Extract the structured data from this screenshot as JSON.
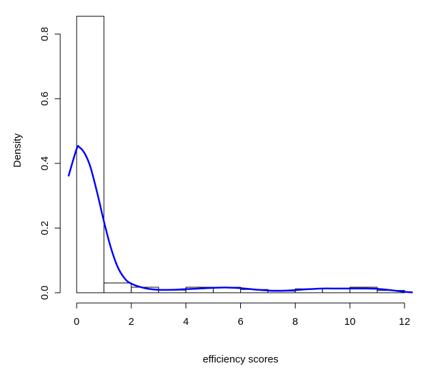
{
  "chart_data": {
    "type": "histogram",
    "title": "",
    "xlabel": "efficiency scores",
    "ylabel": "Density",
    "xlim": [
      -0.3,
      12.3
    ],
    "ylim": [
      0,
      0.88
    ],
    "x_ticks": [
      0,
      2,
      4,
      6,
      8,
      10,
      12
    ],
    "x_tick_labels": [
      "0",
      "2",
      "4",
      "6",
      "8",
      "10",
      "12"
    ],
    "y_ticks": [
      0.0,
      0.2,
      0.4,
      0.6,
      0.8
    ],
    "y_tick_labels": [
      "0.0",
      "0.2",
      "0.4",
      "0.6",
      "0.8"
    ],
    "grid": false,
    "histogram": {
      "bins": [
        {
          "from": 0,
          "to": 1,
          "density": 0.855
        },
        {
          "from": 1,
          "to": 2,
          "density": 0.03
        },
        {
          "from": 2,
          "to": 3,
          "density": 0.017
        },
        {
          "from": 3,
          "to": 4,
          "density": 0.008
        },
        {
          "from": 4,
          "to": 5,
          "density": 0.017
        },
        {
          "from": 5,
          "to": 6,
          "density": 0.017
        },
        {
          "from": 6,
          "to": 7,
          "density": 0.01
        },
        {
          "from": 7,
          "to": 8,
          "density": 0.005
        },
        {
          "from": 8,
          "to": 9,
          "density": 0.012
        },
        {
          "from": 9,
          "to": 10,
          "density": 0.013
        },
        {
          "from": 10,
          "to": 11,
          "density": 0.017
        },
        {
          "from": 11,
          "to": 12,
          "density": 0.007
        }
      ]
    },
    "density_curve": {
      "color": "#0000ff",
      "x": [
        -0.3,
        0.0,
        0.1,
        0.3,
        0.5,
        0.75,
        1.0,
        1.25,
        1.5,
        1.75,
        2.0,
        2.5,
        3.0,
        3.5,
        4.0,
        4.5,
        5.0,
        5.5,
        6.0,
        6.5,
        7.0,
        7.5,
        8.0,
        8.5,
        9.0,
        9.5,
        10.0,
        10.5,
        11.0,
        11.5,
        12.0,
        12.3
      ],
      "y": [
        0.36,
        0.445,
        0.45,
        0.43,
        0.39,
        0.31,
        0.22,
        0.14,
        0.08,
        0.045,
        0.028,
        0.014,
        0.009,
        0.009,
        0.011,
        0.013,
        0.015,
        0.016,
        0.014,
        0.01,
        0.007,
        0.006,
        0.008,
        0.011,
        0.013,
        0.013,
        0.013,
        0.013,
        0.012,
        0.008,
        0.003,
        0.001
      ]
    }
  }
}
